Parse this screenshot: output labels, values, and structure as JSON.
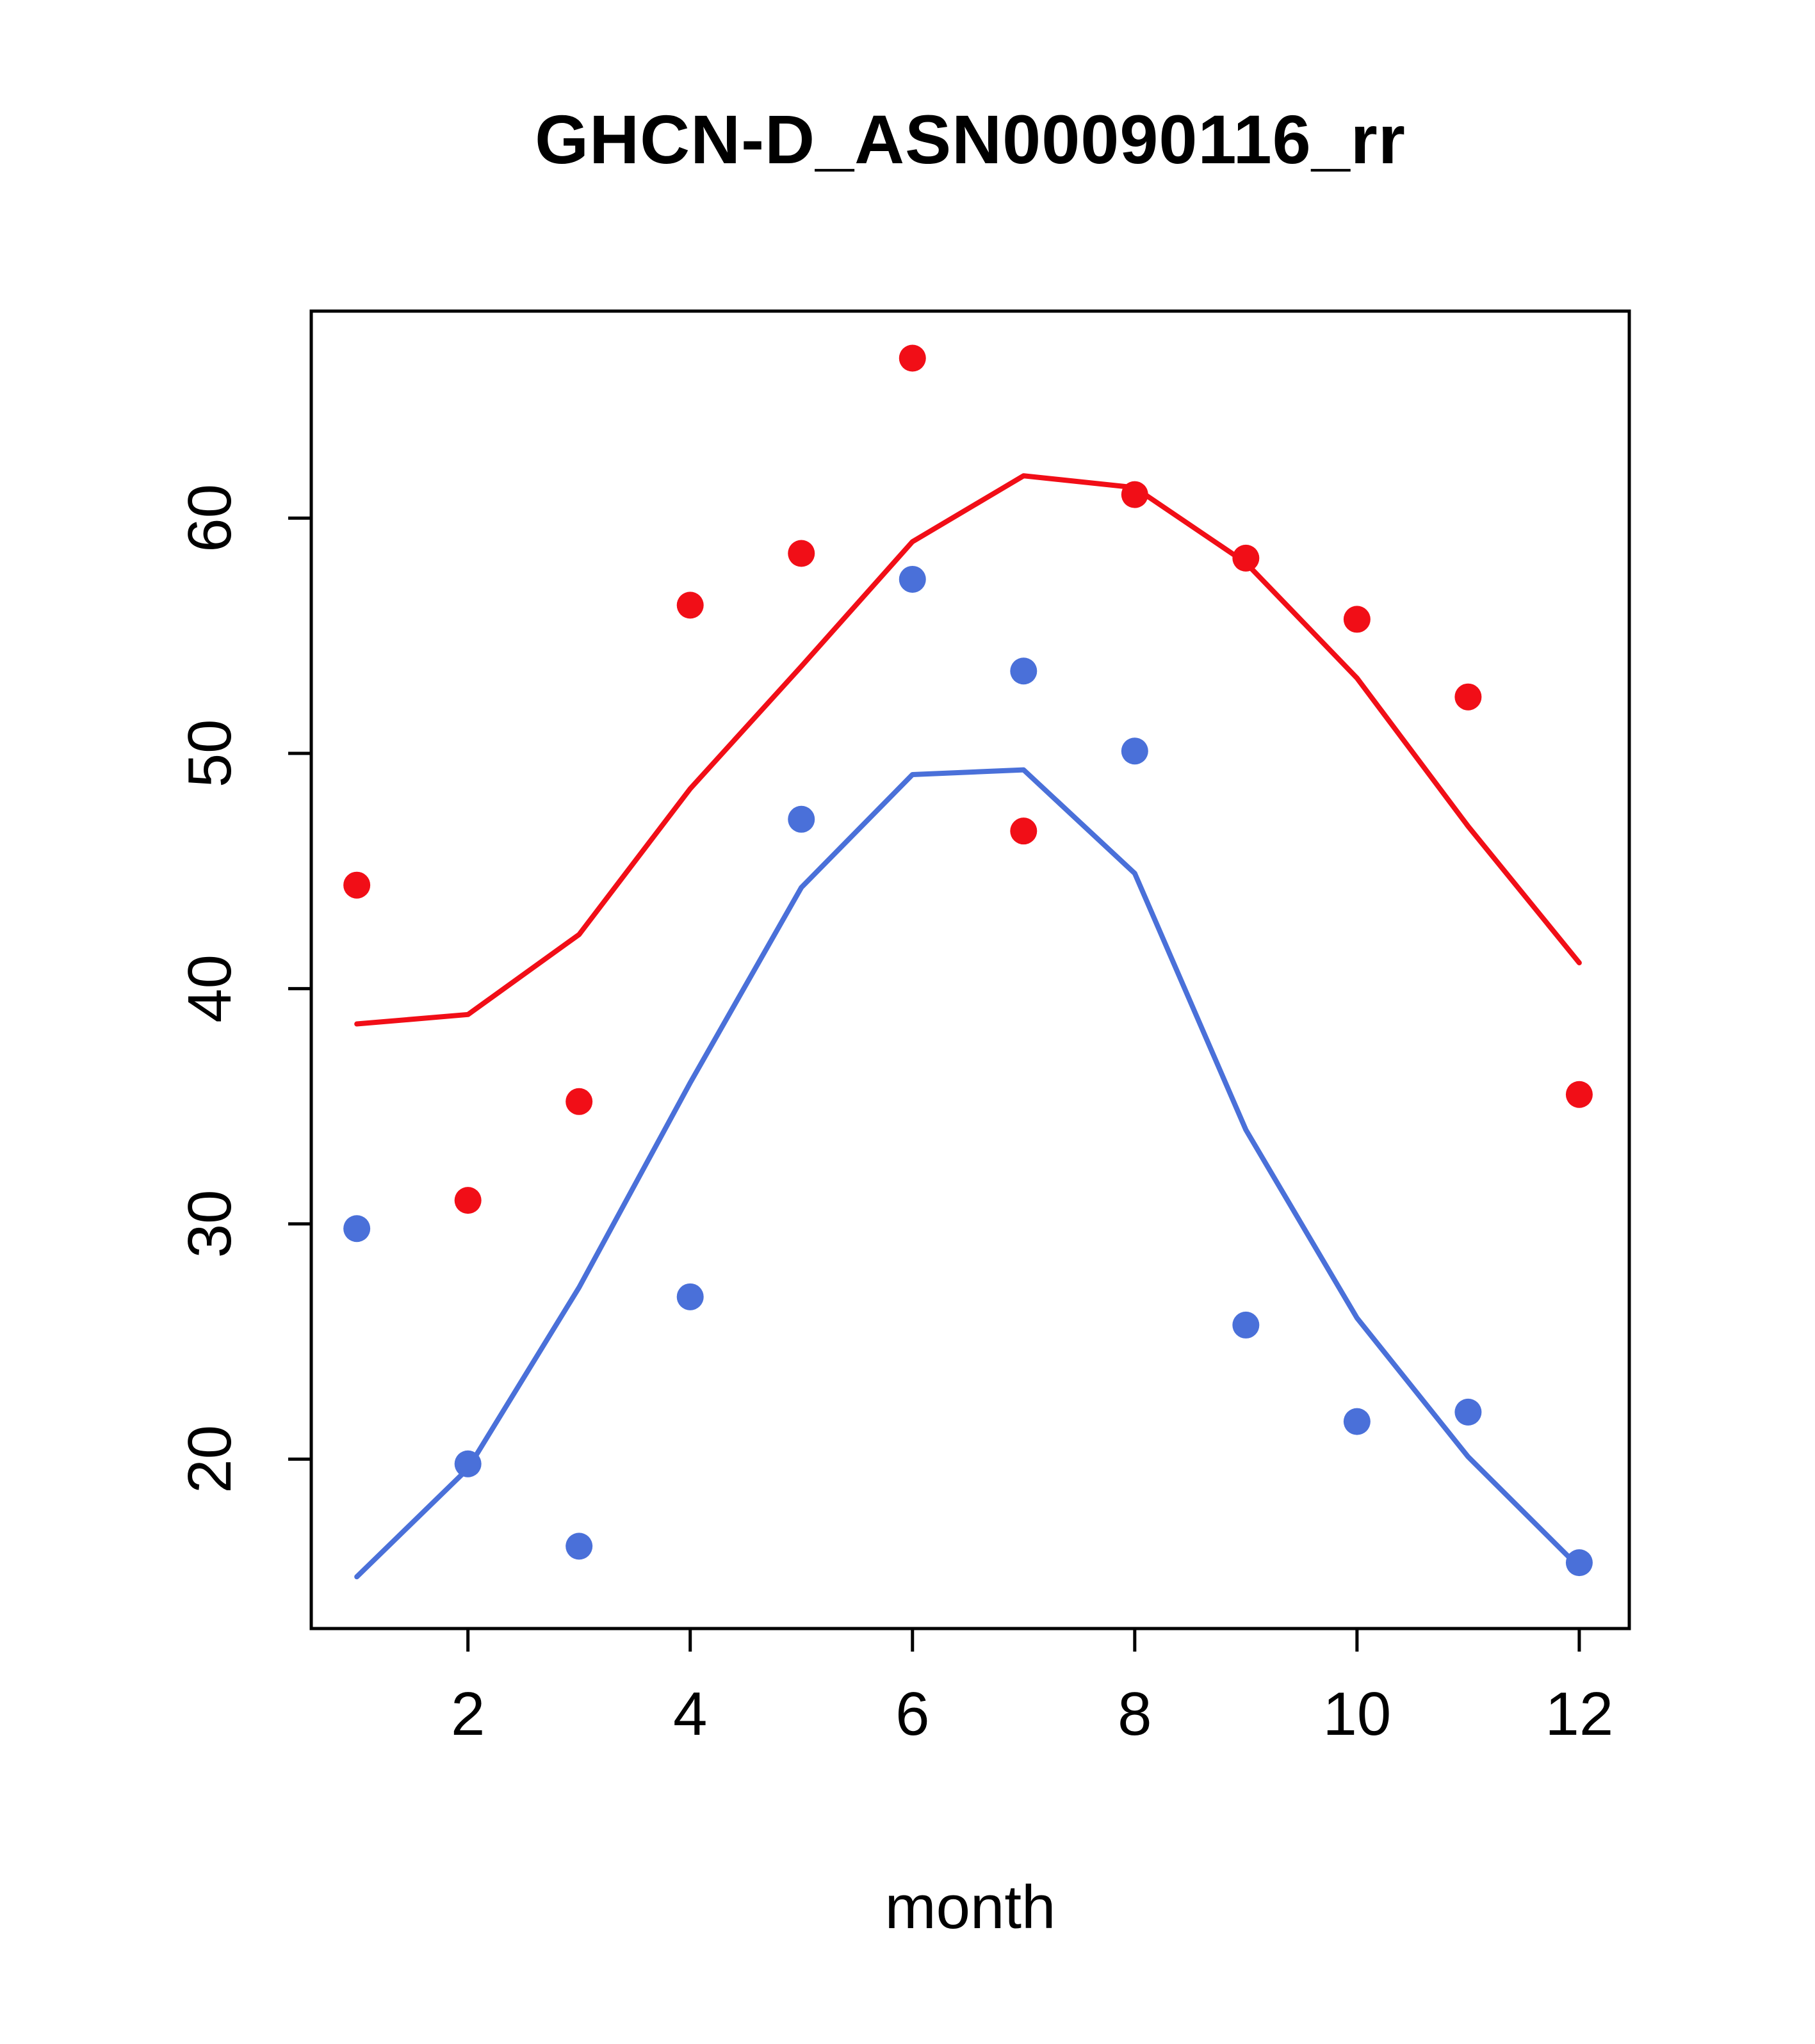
{
  "chart_data": {
    "type": "scatter",
    "title": "GHCN-D_ASN00090116_rr",
    "xlabel": "month",
    "ylabel": "",
    "x": [
      1,
      2,
      3,
      4,
      5,
      6,
      7,
      8,
      9,
      10,
      11,
      12
    ],
    "series": [
      {
        "name": "red-monthly-points",
        "style": "points",
        "color": "#f10e17",
        "values": [
          44.4,
          31.0,
          35.2,
          56.3,
          58.5,
          66.8,
          46.7,
          61.0,
          58.3,
          55.7,
          52.4,
          35.5
        ]
      },
      {
        "name": "red-smoothed-line",
        "style": "line",
        "color": "#f10e17",
        "values": [
          38.5,
          38.9,
          42.3,
          48.5,
          53.7,
          59.0,
          61.8,
          61.3,
          58.1,
          53.2,
          46.9,
          41.1
        ]
      },
      {
        "name": "blue-monthly-points",
        "style": "points",
        "color": "#4a70d9",
        "values": [
          29.8,
          19.8,
          16.3,
          26.9,
          47.2,
          57.4,
          53.5,
          50.1,
          25.7,
          21.6,
          22.0,
          15.6
        ]
      },
      {
        "name": "blue-smoothed-line",
        "style": "line",
        "color": "#4a70d9",
        "values": [
          15.0,
          19.6,
          27.3,
          36.0,
          44.3,
          49.1,
          49.3,
          44.9,
          34.0,
          26.0,
          20.1,
          15.4
        ]
      }
    ],
    "xticks": [
      2,
      4,
      6,
      8,
      10,
      12
    ],
    "yticks": [
      20,
      30,
      40,
      50,
      60
    ],
    "xlim": [
      0.59,
      12.45
    ],
    "ylim": [
      12.8,
      68.8
    ],
    "grid": false,
    "legend": null
  }
}
